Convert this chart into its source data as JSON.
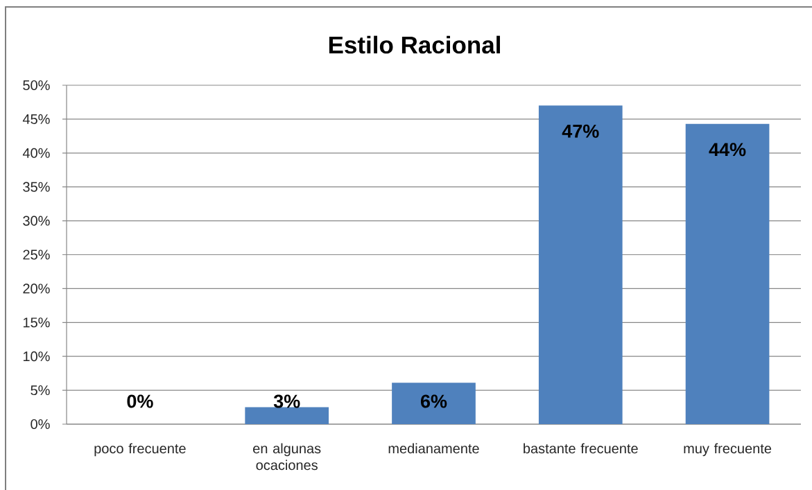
{
  "chart_data": {
    "type": "bar",
    "title": "Estilo Racional",
    "categories": [
      "poco frecuente",
      "en algunas ocaciones",
      "medianamente",
      "bastante frecuente",
      "muy frecuente"
    ],
    "values": [
      0,
      2.5,
      6.1,
      47,
      44.3
    ],
    "color": "#4f81bd",
    "value_labels": [
      "0%",
      "3%",
      "6%",
      "47%",
      "44%"
    ],
    "ylim": [
      0,
      50
    ],
    "yticks": [
      {
        "value": 0,
        "label": "0%"
      },
      {
        "value": 5,
        "label": "5%"
      },
      {
        "value": 10,
        "label": "10%"
      },
      {
        "value": 15,
        "label": "15%"
      },
      {
        "value": 20,
        "label": "20%"
      },
      {
        "value": 25,
        "label": "25%"
      },
      {
        "value": 30,
        "label": "30%"
      },
      {
        "value": 35,
        "label": "35%"
      },
      {
        "value": 40,
        "label": "40%"
      },
      {
        "value": 45,
        "label": "45%"
      },
      {
        "value": 50,
        "label": "50%"
      }
    ],
    "grid": "y"
  }
}
